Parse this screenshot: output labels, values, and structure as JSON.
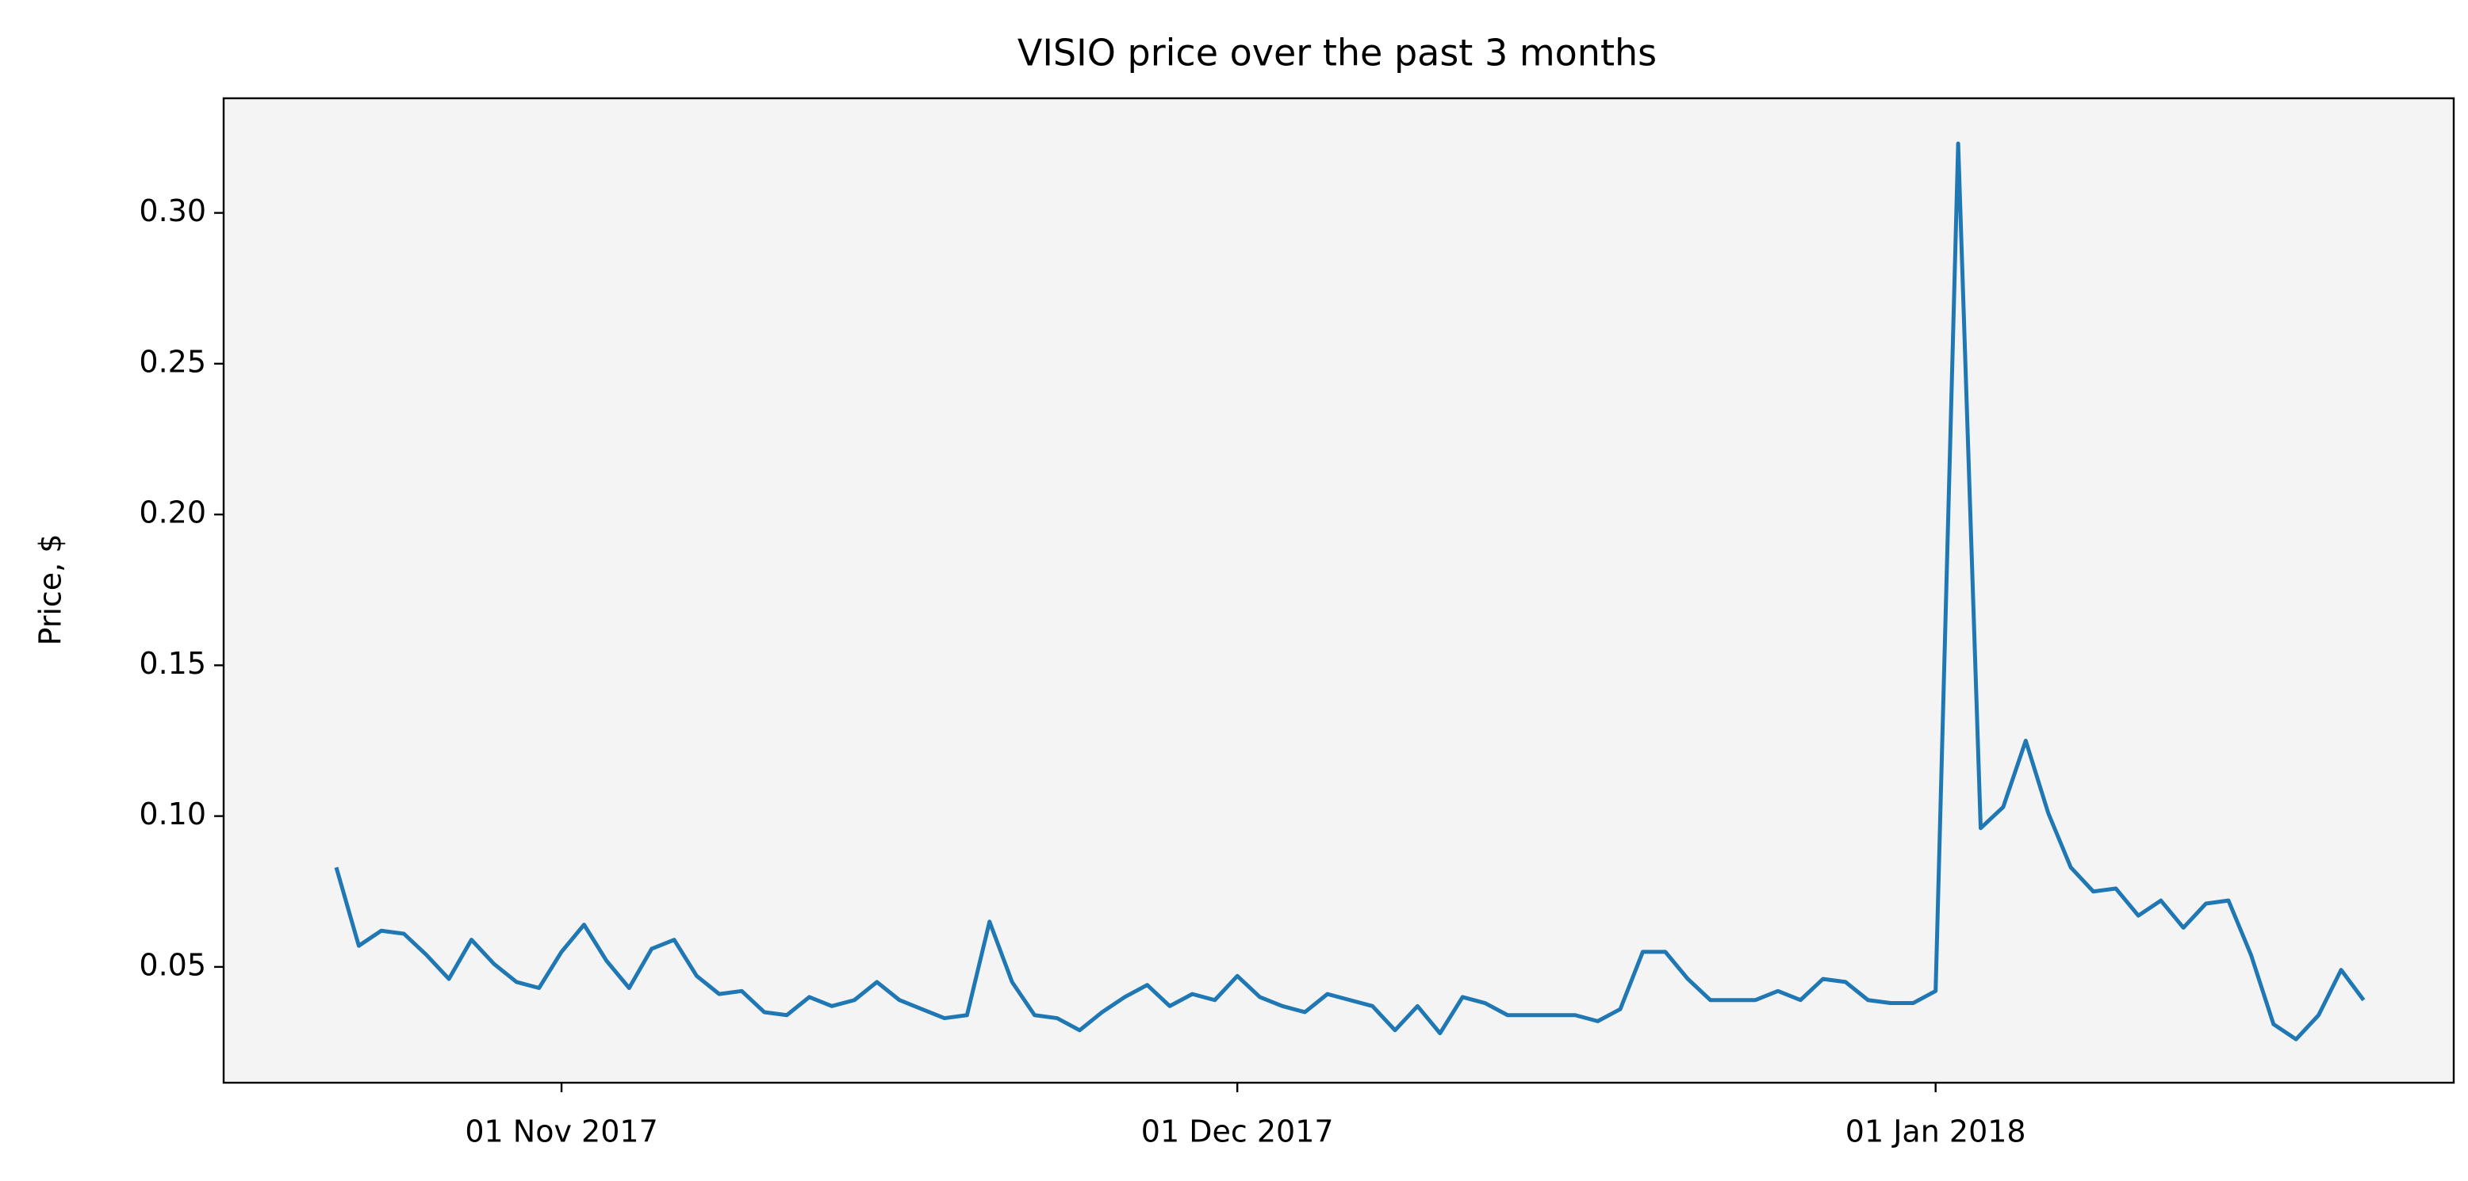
{
  "chart_data": {
    "type": "line",
    "title": "VISIO price over the past 3 months",
    "y_label": "Price, $",
    "x": [
      "2017-10-22",
      "2017-10-23",
      "2017-10-24",
      "2017-10-25",
      "2017-10-26",
      "2017-10-27",
      "2017-10-28",
      "2017-10-29",
      "2017-10-30",
      "2017-10-31",
      "2017-11-01",
      "2017-11-02",
      "2017-11-03",
      "2017-11-04",
      "2017-11-05",
      "2017-11-06",
      "2017-11-07",
      "2017-11-08",
      "2017-11-09",
      "2017-11-10",
      "2017-11-11",
      "2017-11-12",
      "2017-11-13",
      "2017-11-14",
      "2017-11-15",
      "2017-11-16",
      "2017-11-17",
      "2017-11-18",
      "2017-11-19",
      "2017-11-20",
      "2017-11-21",
      "2017-11-22",
      "2017-11-23",
      "2017-11-24",
      "2017-11-25",
      "2017-11-26",
      "2017-11-27",
      "2017-11-28",
      "2017-11-29",
      "2017-11-30",
      "2017-12-01",
      "2017-12-02",
      "2017-12-03",
      "2017-12-04",
      "2017-12-05",
      "2017-12-06",
      "2017-12-07",
      "2017-12-08",
      "2017-12-09",
      "2017-12-10",
      "2017-12-11",
      "2017-12-12",
      "2017-12-13",
      "2017-12-14",
      "2017-12-15",
      "2017-12-16",
      "2017-12-17",
      "2017-12-18",
      "2017-12-19",
      "2017-12-20",
      "2017-12-21",
      "2017-12-22",
      "2017-12-23",
      "2017-12-24",
      "2017-12-25",
      "2017-12-26",
      "2017-12-27",
      "2017-12-28",
      "2017-12-29",
      "2017-12-30",
      "2017-12-31",
      "2018-01-01",
      "2018-01-02",
      "2018-01-03",
      "2018-01-04",
      "2018-01-05",
      "2018-01-06",
      "2018-01-07",
      "2018-01-08",
      "2018-01-09",
      "2018-01-10",
      "2018-01-11",
      "2018-01-12",
      "2018-01-13",
      "2018-01-14",
      "2018-01-15",
      "2018-01-16",
      "2018-01-17",
      "2018-01-18",
      "2018-01-19",
      "2018-01-20"
    ],
    "values": [
      0.083,
      0.057,
      0.062,
      0.061,
      0.054,
      0.046,
      0.059,
      0.051,
      0.045,
      0.043,
      0.055,
      0.064,
      0.052,
      0.043,
      0.056,
      0.059,
      0.047,
      0.041,
      0.042,
      0.035,
      0.034,
      0.04,
      0.037,
      0.039,
      0.045,
      0.039,
      0.036,
      0.033,
      0.034,
      0.065,
      0.045,
      0.034,
      0.033,
      0.029,
      0.035,
      0.04,
      0.044,
      0.037,
      0.041,
      0.039,
      0.047,
      0.04,
      0.037,
      0.035,
      0.041,
      0.039,
      0.037,
      0.029,
      0.037,
      0.028,
      0.04,
      0.038,
      0.034,
      0.034,
      0.034,
      0.034,
      0.032,
      0.036,
      0.055,
      0.055,
      0.046,
      0.039,
      0.039,
      0.039,
      0.042,
      0.039,
      0.046,
      0.045,
      0.039,
      0.038,
      0.038,
      0.042,
      0.323,
      0.096,
      0.103,
      0.125,
      0.101,
      0.083,
      0.075,
      0.076,
      0.067,
      0.072,
      0.063,
      0.071,
      0.072,
      0.054,
      0.031,
      0.026,
      0.034,
      0.049,
      0.039
    ],
    "color": "#1f77b4",
    "xlim": [
      "2017-10-17",
      "2018-01-24"
    ],
    "xticks": [
      {
        "value": "2017-11-01",
        "label": "01 Nov 2017"
      },
      {
        "value": "2017-12-01",
        "label": "01 Dec 2017"
      },
      {
        "value": "2018-01-01",
        "label": "01 Jan 2018"
      }
    ],
    "ylim": [
      0.0116,
      0.338
    ],
    "yticks": [
      {
        "value": 0.05,
        "label": "0.05"
      },
      {
        "value": 0.1,
        "label": "0.10"
      },
      {
        "value": 0.15,
        "label": "0.15"
      },
      {
        "value": 0.2,
        "label": "0.20"
      },
      {
        "value": 0.25,
        "label": "0.25"
      },
      {
        "value": 0.3,
        "label": "0.30"
      }
    ],
    "background": "#f4f4f4"
  }
}
